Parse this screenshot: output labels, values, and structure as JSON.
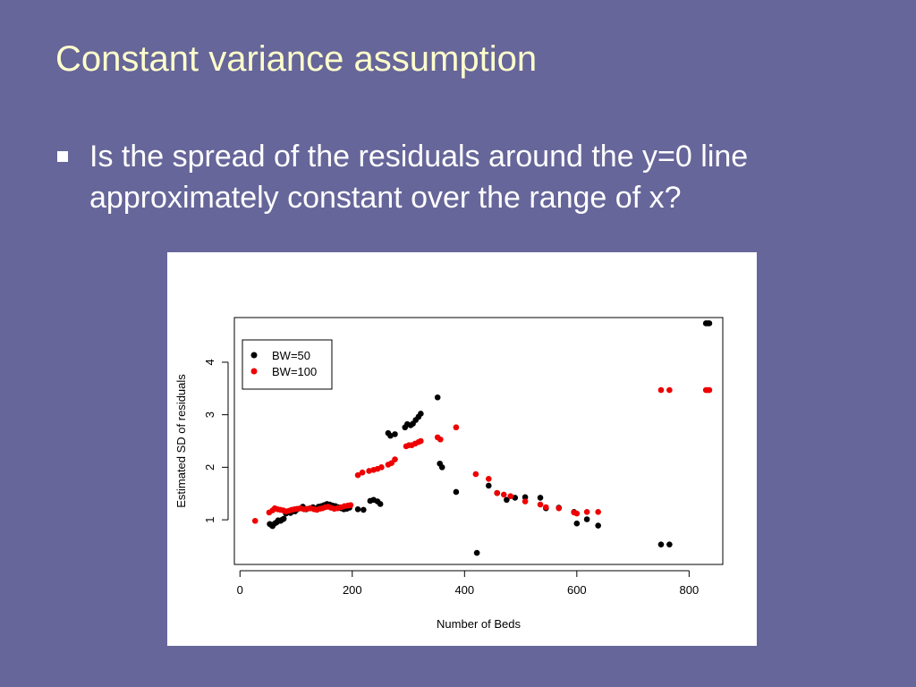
{
  "slide": {
    "title": "Constant variance assumption",
    "bullet": "Is the spread of the residuals around the y=0 line approximately constant over the range of x?"
  },
  "colors": {
    "background": "#66669a",
    "title": "#ffffcc",
    "series_bw50": "#000000",
    "series_bw100": "#ee0000"
  },
  "chart_data": {
    "type": "scatter",
    "xlabel": "Number of Beds",
    "ylabel": "Estimated SD of residuals",
    "xlim": [
      -10,
      860
    ],
    "ylim": [
      0.15,
      4.85
    ],
    "xticks": [
      0,
      200,
      400,
      600,
      800
    ],
    "yticks": [
      1,
      2,
      3,
      4
    ],
    "legend_position": "top-left",
    "grid": false,
    "series": [
      {
        "name": "BW=50",
        "color": "#000000",
        "points": [
          [
            53,
            0.92
          ],
          [
            56,
            0.9
          ],
          [
            58,
            0.88
          ],
          [
            62,
            0.93
          ],
          [
            65,
            0.95
          ],
          [
            68,
            0.99
          ],
          [
            72,
            0.98
          ],
          [
            75,
            1.0
          ],
          [
            78,
            1.02
          ],
          [
            82,
            1.12
          ],
          [
            86,
            1.15
          ],
          [
            90,
            1.13
          ],
          [
            94,
            1.18
          ],
          [
            98,
            1.16
          ],
          [
            102,
            1.2
          ],
          [
            108,
            1.22
          ],
          [
            112,
            1.25
          ],
          [
            118,
            1.2
          ],
          [
            125,
            1.22
          ],
          [
            130,
            1.24
          ],
          [
            136,
            1.21
          ],
          [
            140,
            1.25
          ],
          [
            145,
            1.26
          ],
          [
            150,
            1.28
          ],
          [
            155,
            1.3
          ],
          [
            160,
            1.29
          ],
          [
            165,
            1.27
          ],
          [
            170,
            1.26
          ],
          [
            175,
            1.24
          ],
          [
            180,
            1.22
          ],
          [
            185,
            1.2
          ],
          [
            190,
            1.21
          ],
          [
            195,
            1.23
          ],
          [
            210,
            1.2
          ],
          [
            220,
            1.19
          ],
          [
            232,
            1.36
          ],
          [
            238,
            1.38
          ],
          [
            245,
            1.35
          ],
          [
            250,
            1.3
          ],
          [
            264,
            2.65
          ],
          [
            268,
            2.6
          ],
          [
            276,
            2.63
          ],
          [
            294,
            2.76
          ],
          [
            298,
            2.82
          ],
          [
            304,
            2.8
          ],
          [
            308,
            2.83
          ],
          [
            313,
            2.9
          ],
          [
            318,
            2.96
          ],
          [
            322,
            3.02
          ],
          [
            352,
            3.33
          ],
          [
            356,
            2.07
          ],
          [
            360,
            2.0
          ],
          [
            385,
            1.53
          ],
          [
            422,
            0.37
          ],
          [
            443,
            1.65
          ],
          [
            458,
            1.51
          ],
          [
            475,
            1.38
          ],
          [
            490,
            1.42
          ],
          [
            508,
            1.43
          ],
          [
            535,
            1.42
          ],
          [
            545,
            1.22
          ],
          [
            568,
            1.23
          ],
          [
            595,
            1.15
          ],
          [
            600,
            0.93
          ],
          [
            618,
            1.01
          ],
          [
            638,
            0.89
          ],
          [
            750,
            0.53
          ],
          [
            765,
            0.53
          ],
          [
            830,
            4.74
          ],
          [
            833,
            4.74
          ],
          [
            836,
            4.74
          ]
        ]
      },
      {
        "name": "BW=100",
        "color": "#ee0000",
        "points": [
          [
            27,
            0.98
          ],
          [
            52,
            1.14
          ],
          [
            58,
            1.18
          ],
          [
            62,
            1.22
          ],
          [
            67,
            1.2
          ],
          [
            72,
            1.19
          ],
          [
            77,
            1.18
          ],
          [
            82,
            1.16
          ],
          [
            87,
            1.17
          ],
          [
            92,
            1.19
          ],
          [
            97,
            1.2
          ],
          [
            102,
            1.21
          ],
          [
            108,
            1.22
          ],
          [
            114,
            1.2
          ],
          [
            120,
            1.21
          ],
          [
            126,
            1.22
          ],
          [
            132,
            1.2
          ],
          [
            137,
            1.19
          ],
          [
            142,
            1.21
          ],
          [
            147,
            1.22
          ],
          [
            152,
            1.24
          ],
          [
            157,
            1.25
          ],
          [
            162,
            1.23
          ],
          [
            168,
            1.21
          ],
          [
            174,
            1.22
          ],
          [
            180,
            1.24
          ],
          [
            186,
            1.26
          ],
          [
            192,
            1.27
          ],
          [
            197,
            1.28
          ],
          [
            210,
            1.85
          ],
          [
            218,
            1.9
          ],
          [
            230,
            1.93
          ],
          [
            238,
            1.95
          ],
          [
            245,
            1.97
          ],
          [
            252,
            2.0
          ],
          [
            264,
            2.05
          ],
          [
            270,
            2.08
          ],
          [
            276,
            2.15
          ],
          [
            296,
            2.4
          ],
          [
            301,
            2.42
          ],
          [
            306,
            2.42
          ],
          [
            312,
            2.45
          ],
          [
            318,
            2.48
          ],
          [
            322,
            2.5
          ],
          [
            352,
            2.57
          ],
          [
            357,
            2.53
          ],
          [
            385,
            2.76
          ],
          [
            420,
            1.87
          ],
          [
            443,
            1.78
          ],
          [
            458,
            1.51
          ],
          [
            470,
            1.48
          ],
          [
            482,
            1.45
          ],
          [
            508,
            1.35
          ],
          [
            535,
            1.29
          ],
          [
            545,
            1.24
          ],
          [
            568,
            1.22
          ],
          [
            595,
            1.14
          ],
          [
            600,
            1.12
          ],
          [
            618,
            1.15
          ],
          [
            638,
            1.15
          ],
          [
            750,
            3.47
          ],
          [
            765,
            3.47
          ],
          [
            830,
            3.47
          ],
          [
            833,
            3.47
          ],
          [
            836,
            3.47
          ]
        ]
      }
    ]
  }
}
